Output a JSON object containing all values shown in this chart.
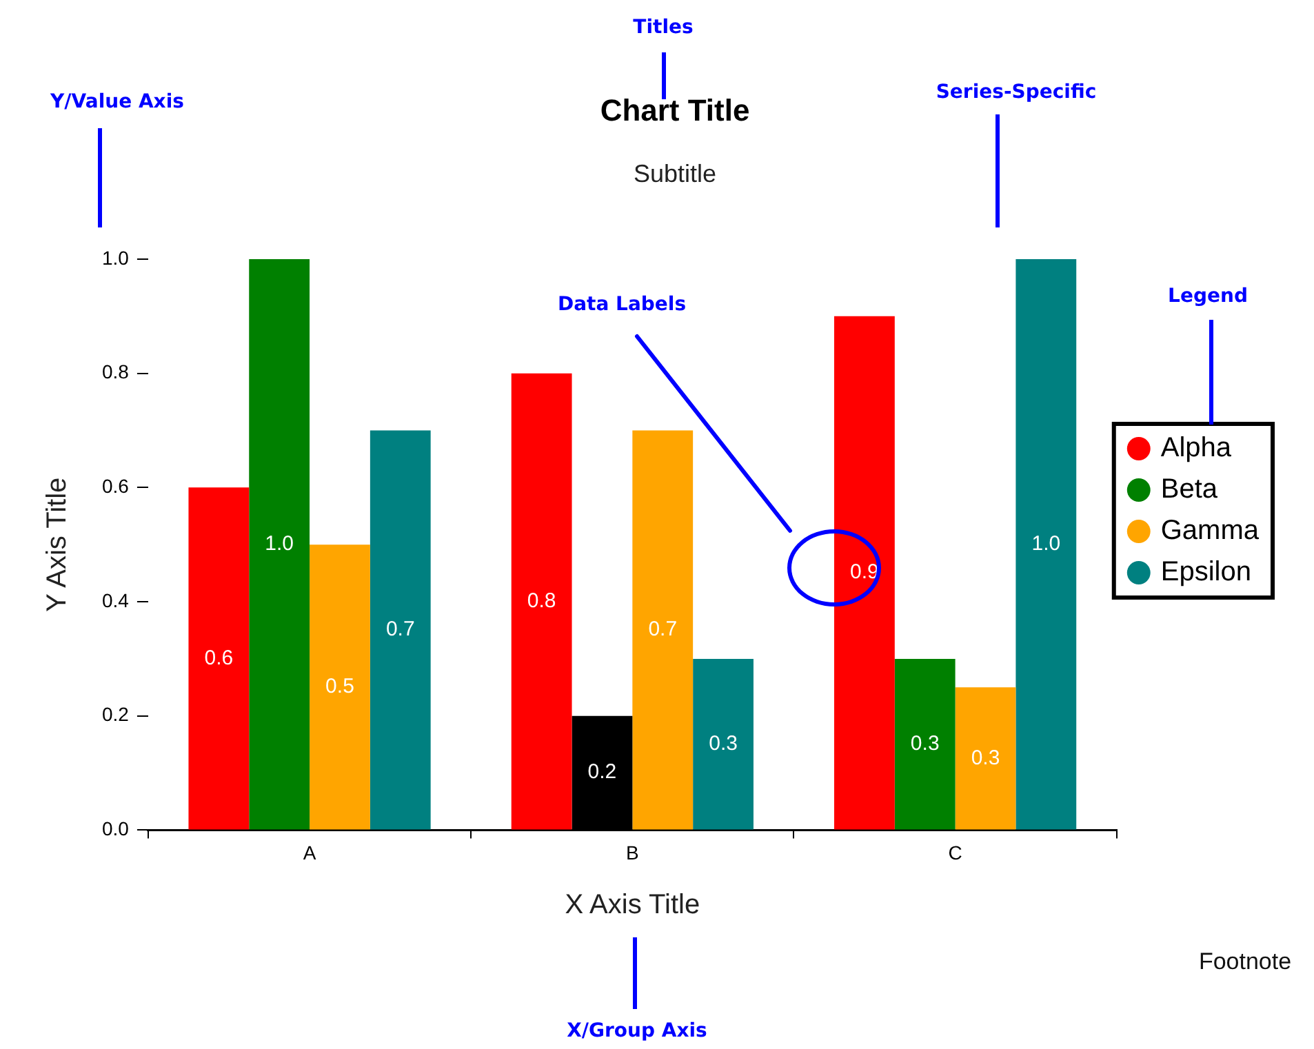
{
  "chart_data": {
    "type": "bar",
    "title": "Chart Title",
    "subtitle": "Subtitle",
    "xlabel": "X Axis Title",
    "ylabel": "Y Axis Title",
    "categories": [
      "A",
      "B",
      "C"
    ],
    "series": [
      {
        "name": "Alpha",
        "color": "#ff0000",
        "values": [
          0.6,
          0.8,
          0.9
        ],
        "value_labels": [
          "0.6",
          "0.8",
          "0.9"
        ]
      },
      {
        "name": "Beta",
        "color": "#008000",
        "colors": [
          "#008000",
          "#000000",
          "#008000"
        ],
        "values": [
          1.0,
          0.2,
          0.3
        ],
        "value_labels": [
          "1.0",
          "0.2",
          "0.3"
        ]
      },
      {
        "name": "Gamma",
        "color": "#ffa500",
        "values": [
          0.5,
          0.7,
          0.25
        ],
        "value_labels": [
          "0.5",
          "0.7",
          "0.3"
        ]
      },
      {
        "name": "Epsilon",
        "color": "#008080",
        "values": [
          0.7,
          0.3,
          1.0
        ],
        "value_labels": [
          "0.7",
          "0.3",
          "1.0"
        ]
      }
    ],
    "ylim": [
      0,
      1
    ],
    "yticks": [
      {
        "value": 0,
        "label": "0.0"
      },
      0.2,
      0.4,
      0.6,
      0.8,
      {
        "value": 1,
        "label": "1.0"
      }
    ],
    "grid": false,
    "legend": "right",
    "annotations": [
      "Titles",
      "Y/Value Axis",
      "Series-Specific",
      "Data Labels",
      "Legend",
      "X/Group Axis",
      "Footnote"
    ]
  }
}
